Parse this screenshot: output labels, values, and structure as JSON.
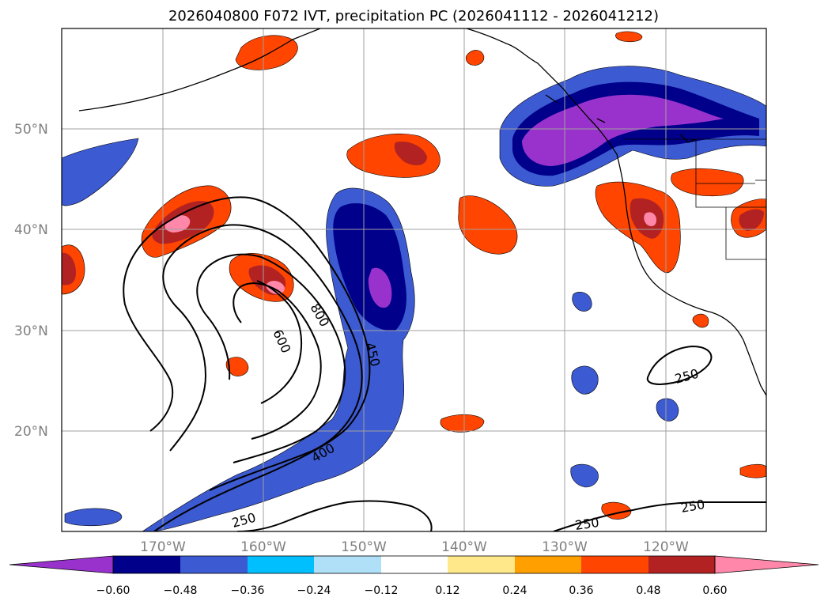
{
  "title": "2026040800 F072 IVT, precipitation PC (2026041112 - 2026041212)",
  "map": {
    "lon_ticks": [
      "170°W",
      "160°W",
      "150°W",
      "140°W",
      "130°W",
      "120°W"
    ],
    "lat_ticks": [
      "50°N",
      "40°N",
      "30°N",
      "20°N"
    ],
    "contour_labels": [
      "800",
      "600",
      "450",
      "400",
      "250",
      "250",
      "250",
      "250"
    ],
    "colors": {
      "land_outline": "#000000",
      "grid": "#a0a0a0",
      "contour": "#000000"
    }
  },
  "colorbar": {
    "ticks": [
      "−0.60",
      "−0.48",
      "−0.36",
      "−0.24",
      "−0.12",
      "0.12",
      "0.24",
      "0.36",
      "0.48",
      "0.60"
    ],
    "colors": [
      "#9932cc",
      "#00008b",
      "#3c5ad2",
      "#00bfff",
      "#b0e0f8",
      "#ffffff",
      "#ffe88a",
      "#ffa000",
      "#ff4500",
      "#b22222",
      "#ff88aa"
    ]
  }
}
